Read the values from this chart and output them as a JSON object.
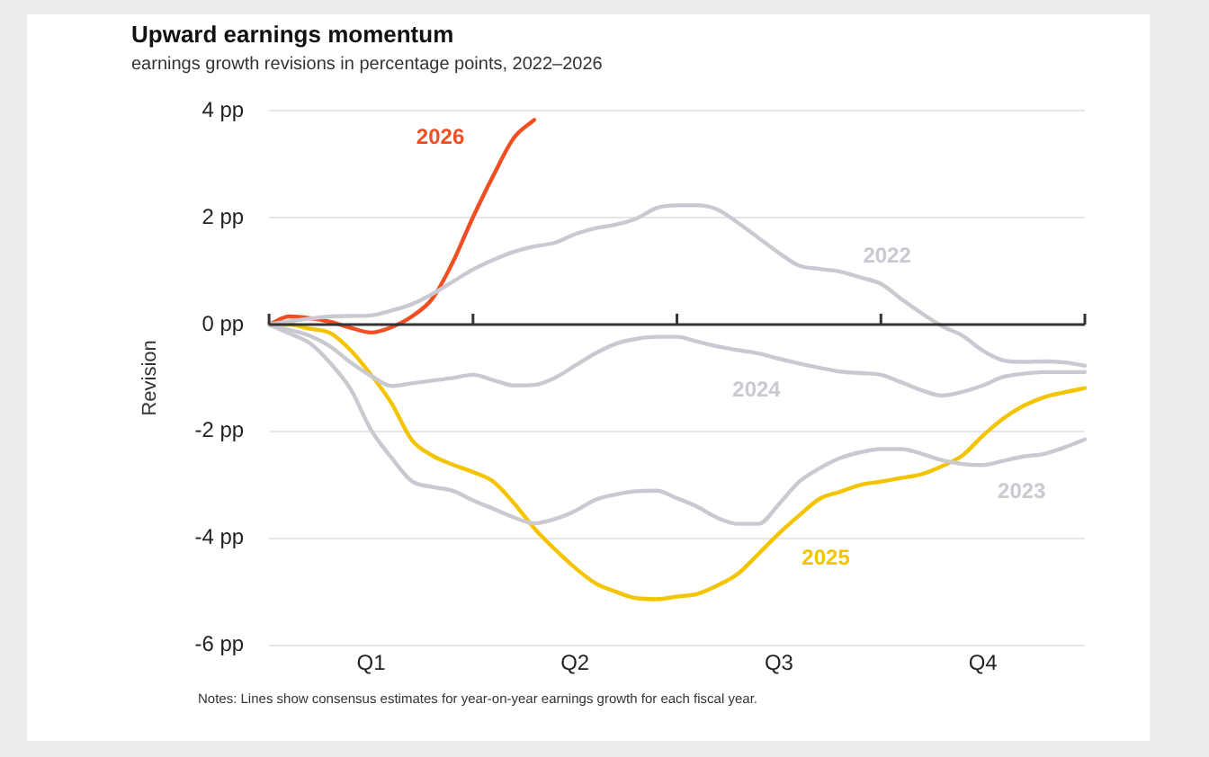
{
  "chart_data": {
    "type": "line",
    "title": "Upward earnings momentum",
    "subtitle": "earnings growth revisions in percentage points, 2022–2026",
    "ylabel": "Revision",
    "categories": [
      null,
      null,
      null,
      null,
      null,
      "Q1",
      null,
      null,
      null,
      null,
      null,
      null,
      null,
      null,
      null,
      "Q2",
      null,
      null,
      null,
      null,
      null,
      null,
      null,
      null,
      null,
      "Q3",
      null,
      null,
      null,
      null,
      null,
      null,
      null,
      null,
      null,
      "Q4",
      null,
      null,
      null,
      null,
      null
    ],
    "ylim": [
      -6,
      4
    ],
    "yticks": [
      {
        "value": -6,
        "label": "-6 pp"
      },
      {
        "value": -4,
        "label": "-4 pp"
      },
      {
        "value": -2,
        "label": "-2 pp"
      },
      {
        "value": 0,
        "label": "0 pp"
      },
      {
        "value": 2,
        "label": "2 pp"
      },
      {
        "value": 4,
        "label": "4 pp"
      }
    ],
    "grid": "y",
    "legend": false,
    "marker": "none",
    "line_style": "solid",
    "series": [
      {
        "name": "2022",
        "color": "#c9c9d1",
        "values": [
          0,
          0.06,
          0.11,
          0.15,
          0.16,
          0.17,
          0.26,
          0.38,
          0.57,
          0.8,
          1.03,
          1.21,
          1.36,
          1.46,
          1.53,
          1.69,
          1.8,
          1.87,
          1.98,
          2.18,
          2.23,
          2.23,
          2.15,
          1.9,
          1.62,
          1.34,
          1.1,
          1.04,
          0.99,
          0.88,
          0.76,
          0.48,
          0.21,
          -0.03,
          -0.21,
          -0.49,
          -0.67,
          -0.7,
          -0.69,
          -0.71,
          -0.77
        ]
      },
      {
        "name": "2023",
        "color": "#c9c9d1",
        "values": [
          0,
          -0.17,
          -0.35,
          -0.72,
          -1.21,
          -1.97,
          -2.49,
          -2.93,
          -3.04,
          -3.11,
          -3.29,
          -3.45,
          -3.61,
          -3.72,
          -3.64,
          -3.49,
          -3.28,
          -3.18,
          -3.12,
          -3.11,
          -3.25,
          -3.41,
          -3.62,
          -3.73,
          -3.73,
          -3.36,
          -2.94,
          -2.69,
          -2.5,
          -2.39,
          -2.33,
          -2.33,
          -2.42,
          -2.54,
          -2.61,
          -2.63,
          -2.55,
          -2.47,
          -2.42,
          -2.3,
          -2.15
        ]
      },
      {
        "name": "2024",
        "color": "#c9c9d1",
        "values": [
          0,
          -0.1,
          -0.21,
          -0.41,
          -0.71,
          -0.96,
          -1.15,
          -1.1,
          -1.05,
          -1.0,
          -0.94,
          -1.04,
          -1.14,
          -1.13,
          -1.0,
          -0.77,
          -0.54,
          -0.36,
          -0.27,
          -0.23,
          -0.23,
          -0.32,
          -0.41,
          -0.48,
          -0.54,
          -0.64,
          -0.73,
          -0.81,
          -0.88,
          -0.91,
          -0.94,
          -1.08,
          -1.23,
          -1.33,
          -1.26,
          -1.14,
          -0.98,
          -0.92,
          -0.89,
          -0.89,
          -0.89
        ]
      },
      {
        "name": "2025",
        "color": "#f5c400",
        "values": [
          0,
          0,
          -0.08,
          -0.16,
          -0.48,
          -0.94,
          -1.47,
          -2.16,
          -2.45,
          -2.62,
          -2.76,
          -2.94,
          -3.34,
          -3.81,
          -4.2,
          -4.55,
          -4.84,
          -5.0,
          -5.12,
          -5.14,
          -5.09,
          -5.04,
          -4.88,
          -4.66,
          -4.29,
          -3.91,
          -3.57,
          -3.26,
          -3.13,
          -3.0,
          -2.94,
          -2.87,
          -2.8,
          -2.65,
          -2.45,
          -2.08,
          -1.76,
          -1.52,
          -1.36,
          -1.27,
          -1.19
        ]
      },
      {
        "name": "2026",
        "color": "#f04e23",
        "values": [
          0,
          0.15,
          0.12,
          0.05,
          -0.06,
          -0.15,
          -0.05,
          0.15,
          0.48,
          1.16,
          2.01,
          2.79,
          3.49,
          3.83,
          null,
          null,
          null,
          null,
          null,
          null,
          null,
          null,
          null,
          null,
          null,
          null,
          null,
          null,
          null,
          null,
          null,
          null,
          null,
          null,
          null,
          null,
          null,
          null,
          null,
          null,
          null
        ]
      }
    ],
    "annotations": [
      "Notes: Lines show consensus estimates for year-on-year earnings growth for each fiscal year."
    ]
  }
}
